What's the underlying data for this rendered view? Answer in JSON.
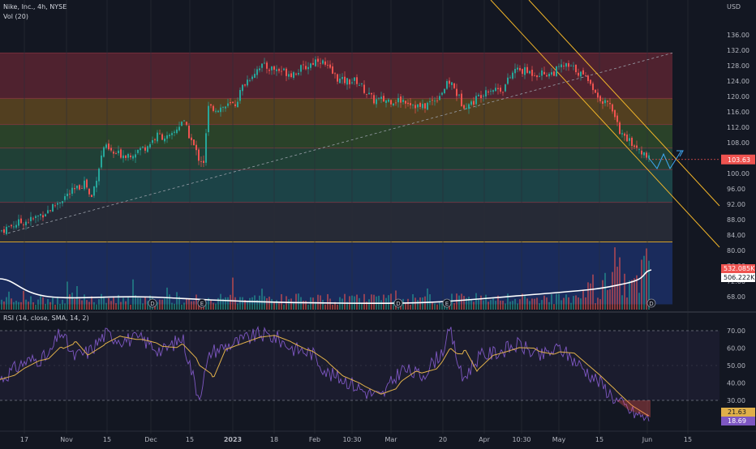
{
  "header": {
    "symbol_line": "Nike, Inc., 4h, NYSE",
    "volume_label": "Vol (20)",
    "currency": "USD"
  },
  "rsi_label": "RSI (14, close, SMA, 14, 2)",
  "colors": {
    "background": "#131722",
    "bull": "#26a69a",
    "bear": "#ef5350",
    "channel": "#f0b429",
    "volume_ma": "#ffffff",
    "rsi_line": "#7e57c2",
    "rsi_ma": "#e0b04a"
  },
  "chart_data": [
    {
      "type": "candlestick",
      "title": "Nike, Inc., 4h, NYSE",
      "y_unit": "USD",
      "y_ticks": [
        "136.00",
        "132.00",
        "128.00",
        "124.00",
        "120.00",
        "116.00",
        "112.00",
        "108.00",
        "104.00",
        "100.00",
        "96.00",
        "92.00",
        "88.00",
        "84.00",
        "80.00",
        "76.00",
        "72.00",
        "68.00"
      ],
      "ylim": [
        66,
        140
      ],
      "x_ticks": [
        "17",
        "Nov",
        "15",
        "Dec",
        "15",
        "2023",
        "18",
        "Feb",
        "10:30",
        "Mar",
        "20",
        "Apr",
        "10:30",
        "May",
        "15",
        "Jun",
        "15"
      ],
      "last_price_label": "103.63",
      "bands": [
        {
          "from": 119.5,
          "to": 131.3,
          "color": "#5a2431"
        },
        {
          "from": 112.7,
          "to": 119.5,
          "color": "#5e4620"
        },
        {
          "from": 106.6,
          "to": 112.7,
          "color": "#2f4a2a"
        },
        {
          "from": 101.0,
          "to": 106.6,
          "color": "#23483a"
        },
        {
          "from": 92.5,
          "to": 101.0,
          "color": "#1f4b4d"
        },
        {
          "from": 82.2,
          "to": 92.5,
          "color": "#2a2e39"
        }
      ],
      "price_path_anchors": [
        {
          "x": 0,
          "y": 85
        },
        {
          "x": 20,
          "y": 87
        },
        {
          "x": 40,
          "y": 88
        },
        {
          "x": 60,
          "y": 90.5
        },
        {
          "x": 80,
          "y": 94
        },
        {
          "x": 95,
          "y": 96
        },
        {
          "x": 105,
          "y": 98
        },
        {
          "x": 112,
          "y": 93
        },
        {
          "x": 120,
          "y": 100
        },
        {
          "x": 128,
          "y": 107
        },
        {
          "x": 140,
          "y": 105
        },
        {
          "x": 160,
          "y": 105
        },
        {
          "x": 180,
          "y": 107
        },
        {
          "x": 195,
          "y": 110
        },
        {
          "x": 210,
          "y": 109
        },
        {
          "x": 225,
          "y": 114
        },
        {
          "x": 235,
          "y": 109
        },
        {
          "x": 245,
          "y": 104
        },
        {
          "x": 252,
          "y": 103
        },
        {
          "x": 256,
          "y": 117
        },
        {
          "x": 270,
          "y": 117
        },
        {
          "x": 290,
          "y": 118
        },
        {
          "x": 300,
          "y": 123
        },
        {
          "x": 320,
          "y": 128
        },
        {
          "x": 340,
          "y": 127
        },
        {
          "x": 360,
          "y": 126
        },
        {
          "x": 380,
          "y": 128
        },
        {
          "x": 393,
          "y": 130
        },
        {
          "x": 405,
          "y": 127
        },
        {
          "x": 420,
          "y": 124
        },
        {
          "x": 440,
          "y": 124
        },
        {
          "x": 460,
          "y": 119
        },
        {
          "x": 480,
          "y": 119
        },
        {
          "x": 500,
          "y": 119
        },
        {
          "x": 520,
          "y": 117
        },
        {
          "x": 540,
          "y": 120
        },
        {
          "x": 555,
          "y": 124
        },
        {
          "x": 570,
          "y": 118
        },
        {
          "x": 580,
          "y": 118
        },
        {
          "x": 600,
          "y": 122
        },
        {
          "x": 620,
          "y": 122
        },
        {
          "x": 635,
          "y": 127
        },
        {
          "x": 660,
          "y": 126
        },
        {
          "x": 680,
          "y": 126
        },
        {
          "x": 695,
          "y": 128
        },
        {
          "x": 710,
          "y": 127
        },
        {
          "x": 725,
          "y": 124
        },
        {
          "x": 740,
          "y": 119
        },
        {
          "x": 755,
          "y": 117
        },
        {
          "x": 765,
          "y": 110
        },
        {
          "x": 780,
          "y": 108
        },
        {
          "x": 790,
          "y": 106
        },
        {
          "x": 800,
          "y": 103.63
        }
      ],
      "annotations": [
        "D",
        "E",
        "D",
        "E",
        "D"
      ]
    },
    {
      "type": "bar",
      "name": "Vol (20)",
      "labels": [
        "532.085K",
        "506.222K"
      ]
    },
    {
      "type": "line",
      "name": "RSI (14, close, SMA, 14, 2)",
      "y_ticks": [
        "70.00",
        "60.00",
        "50.00",
        "40.00",
        "30.00"
      ],
      "ylim": [
        17,
        77
      ],
      "levels": [
        70,
        30
      ],
      "labels": [
        "21.63",
        "18.69"
      ],
      "rsi_anchors": [
        {
          "x": 0,
          "y": 42
        },
        {
          "x": 30,
          "y": 52
        },
        {
          "x": 60,
          "y": 55
        },
        {
          "x": 75,
          "y": 70
        },
        {
          "x": 90,
          "y": 55
        },
        {
          "x": 110,
          "y": 58
        },
        {
          "x": 130,
          "y": 68
        },
        {
          "x": 150,
          "y": 65
        },
        {
          "x": 175,
          "y": 65
        },
        {
          "x": 200,
          "y": 58
        },
        {
          "x": 225,
          "y": 66
        },
        {
          "x": 245,
          "y": 32
        },
        {
          "x": 260,
          "y": 58
        },
        {
          "x": 290,
          "y": 63
        },
        {
          "x": 320,
          "y": 68
        },
        {
          "x": 340,
          "y": 66
        },
        {
          "x": 360,
          "y": 60
        },
        {
          "x": 385,
          "y": 57
        },
        {
          "x": 405,
          "y": 45
        },
        {
          "x": 425,
          "y": 42
        },
        {
          "x": 450,
          "y": 35
        },
        {
          "x": 470,
          "y": 32
        },
        {
          "x": 495,
          "y": 48
        },
        {
          "x": 520,
          "y": 44
        },
        {
          "x": 545,
          "y": 58
        },
        {
          "x": 555,
          "y": 70
        },
        {
          "x": 570,
          "y": 42
        },
        {
          "x": 590,
          "y": 55
        },
        {
          "x": 615,
          "y": 58
        },
        {
          "x": 640,
          "y": 62
        },
        {
          "x": 665,
          "y": 55
        },
        {
          "x": 690,
          "y": 60
        },
        {
          "x": 715,
          "y": 50
        },
        {
          "x": 740,
          "y": 40
        },
        {
          "x": 760,
          "y": 30
        },
        {
          "x": 780,
          "y": 23
        },
        {
          "x": 800,
          "y": 19
        }
      ]
    }
  ]
}
